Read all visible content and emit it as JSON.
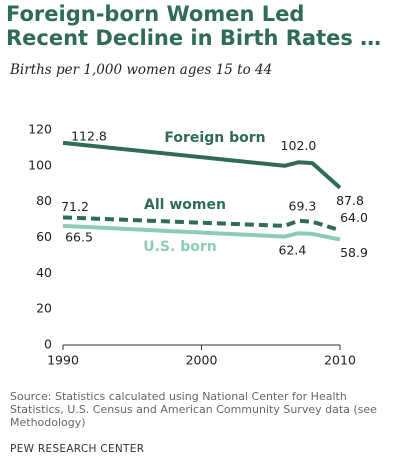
{
  "chart_data": {
    "type": "line",
    "title": "Foreign-born Women Led Recent Decline in Birth Rates …",
    "subtitle": "Births per 1,000 women ages 15 to 44",
    "x": [
      1990,
      2006,
      2007,
      2008,
      2010
    ],
    "xlim": [
      1990,
      2010
    ],
    "xticks": [
      1990,
      2000,
      2010
    ],
    "ylim": [
      0,
      120
    ],
    "yticks": [
      0,
      20,
      40,
      60,
      80,
      100,
      120
    ],
    "grid": false,
    "series": [
      {
        "name": "Foreign born",
        "color": "#2f6b56",
        "dashed": false,
        "values": [
          112.8,
          100,
          102.0,
          101.5,
          87.8
        ],
        "value_labels": [
          "112.8",
          null,
          "102.0",
          null,
          "87.8"
        ]
      },
      {
        "name": "All women",
        "color": "#2f6b56",
        "dashed": true,
        "values": [
          71.2,
          66.5,
          69.3,
          68.8,
          64.0
        ],
        "value_labels": [
          "71.2",
          null,
          "69.3",
          null,
          "64.0"
        ]
      },
      {
        "name": "U.S. born",
        "color": "#8ccbb7",
        "dashed": false,
        "values": [
          66.5,
          60.5,
          62.4,
          62.0,
          58.9
        ],
        "value_labels": [
          "66.5",
          null,
          "62.4",
          null,
          "58.9"
        ]
      }
    ],
    "source": "Source: Statistics calculated using National Center for Health Statistics, U.S. Census and American Community Survey data (see Methodology)",
    "credit": "PEW RESEARCH CENTER"
  }
}
